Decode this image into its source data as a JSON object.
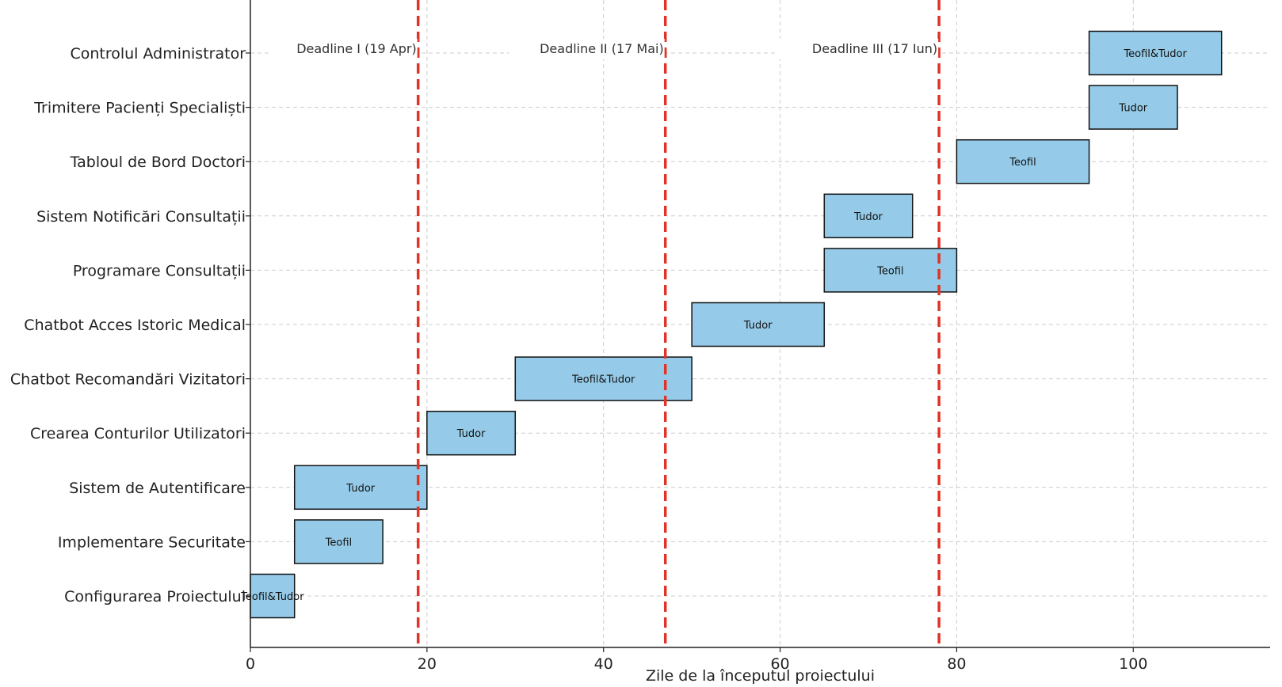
{
  "chart_data": {
    "type": "bar",
    "orientation": "horizontal-gantt",
    "title": "",
    "xlabel": "Zile de la începutul proiectului",
    "ylabel": "",
    "xlim": [
      0,
      115.5
    ],
    "xticks": [
      0,
      20,
      40,
      60,
      80,
      100
    ],
    "grid": true,
    "tasks": [
      {
        "name": "Configurarea Proiectului",
        "start": 0,
        "duration": 5,
        "assignee": "Teofil&Tudor"
      },
      {
        "name": "Implementare Securitate",
        "start": 5,
        "duration": 10,
        "assignee": "Teofil"
      },
      {
        "name": "Sistem de Autentificare",
        "start": 5,
        "duration": 15,
        "assignee": "Tudor"
      },
      {
        "name": "Crearea Conturilor Utilizatori",
        "start": 20,
        "duration": 10,
        "assignee": "Tudor"
      },
      {
        "name": "Chatbot Recomandări Vizitatori",
        "start": 30,
        "duration": 20,
        "assignee": "Teofil&Tudor"
      },
      {
        "name": "Chatbot Acces Istoric Medical",
        "start": 50,
        "duration": 15,
        "assignee": "Tudor"
      },
      {
        "name": "Programare Consultații",
        "start": 65,
        "duration": 15,
        "assignee": "Teofil"
      },
      {
        "name": "Sistem Notificări Consultații",
        "start": 65,
        "duration": 10,
        "assignee": "Tudor"
      },
      {
        "name": "Tabloul de Bord Doctori",
        "start": 80,
        "duration": 15,
        "assignee": "Teofil"
      },
      {
        "name": "Trimitere Pacienți Specialiști",
        "start": 95,
        "duration": 10,
        "assignee": "Tudor"
      },
      {
        "name": "Controlul Administrator",
        "start": 95,
        "duration": 15,
        "assignee": "Teofil&Tudor"
      }
    ],
    "deadlines": [
      {
        "x": 19,
        "label": "Deadline I (19 Apr)"
      },
      {
        "x": 47,
        "label": "Deadline II (17 Mai)"
      },
      {
        "x": 78,
        "label": "Deadline III (17 Iun)"
      }
    ],
    "colors": {
      "bar_fill": "#95cbe8",
      "bar_edge": "#111111",
      "deadline": "#e03428",
      "grid": "#cccccc",
      "axis": "#222222"
    }
  }
}
